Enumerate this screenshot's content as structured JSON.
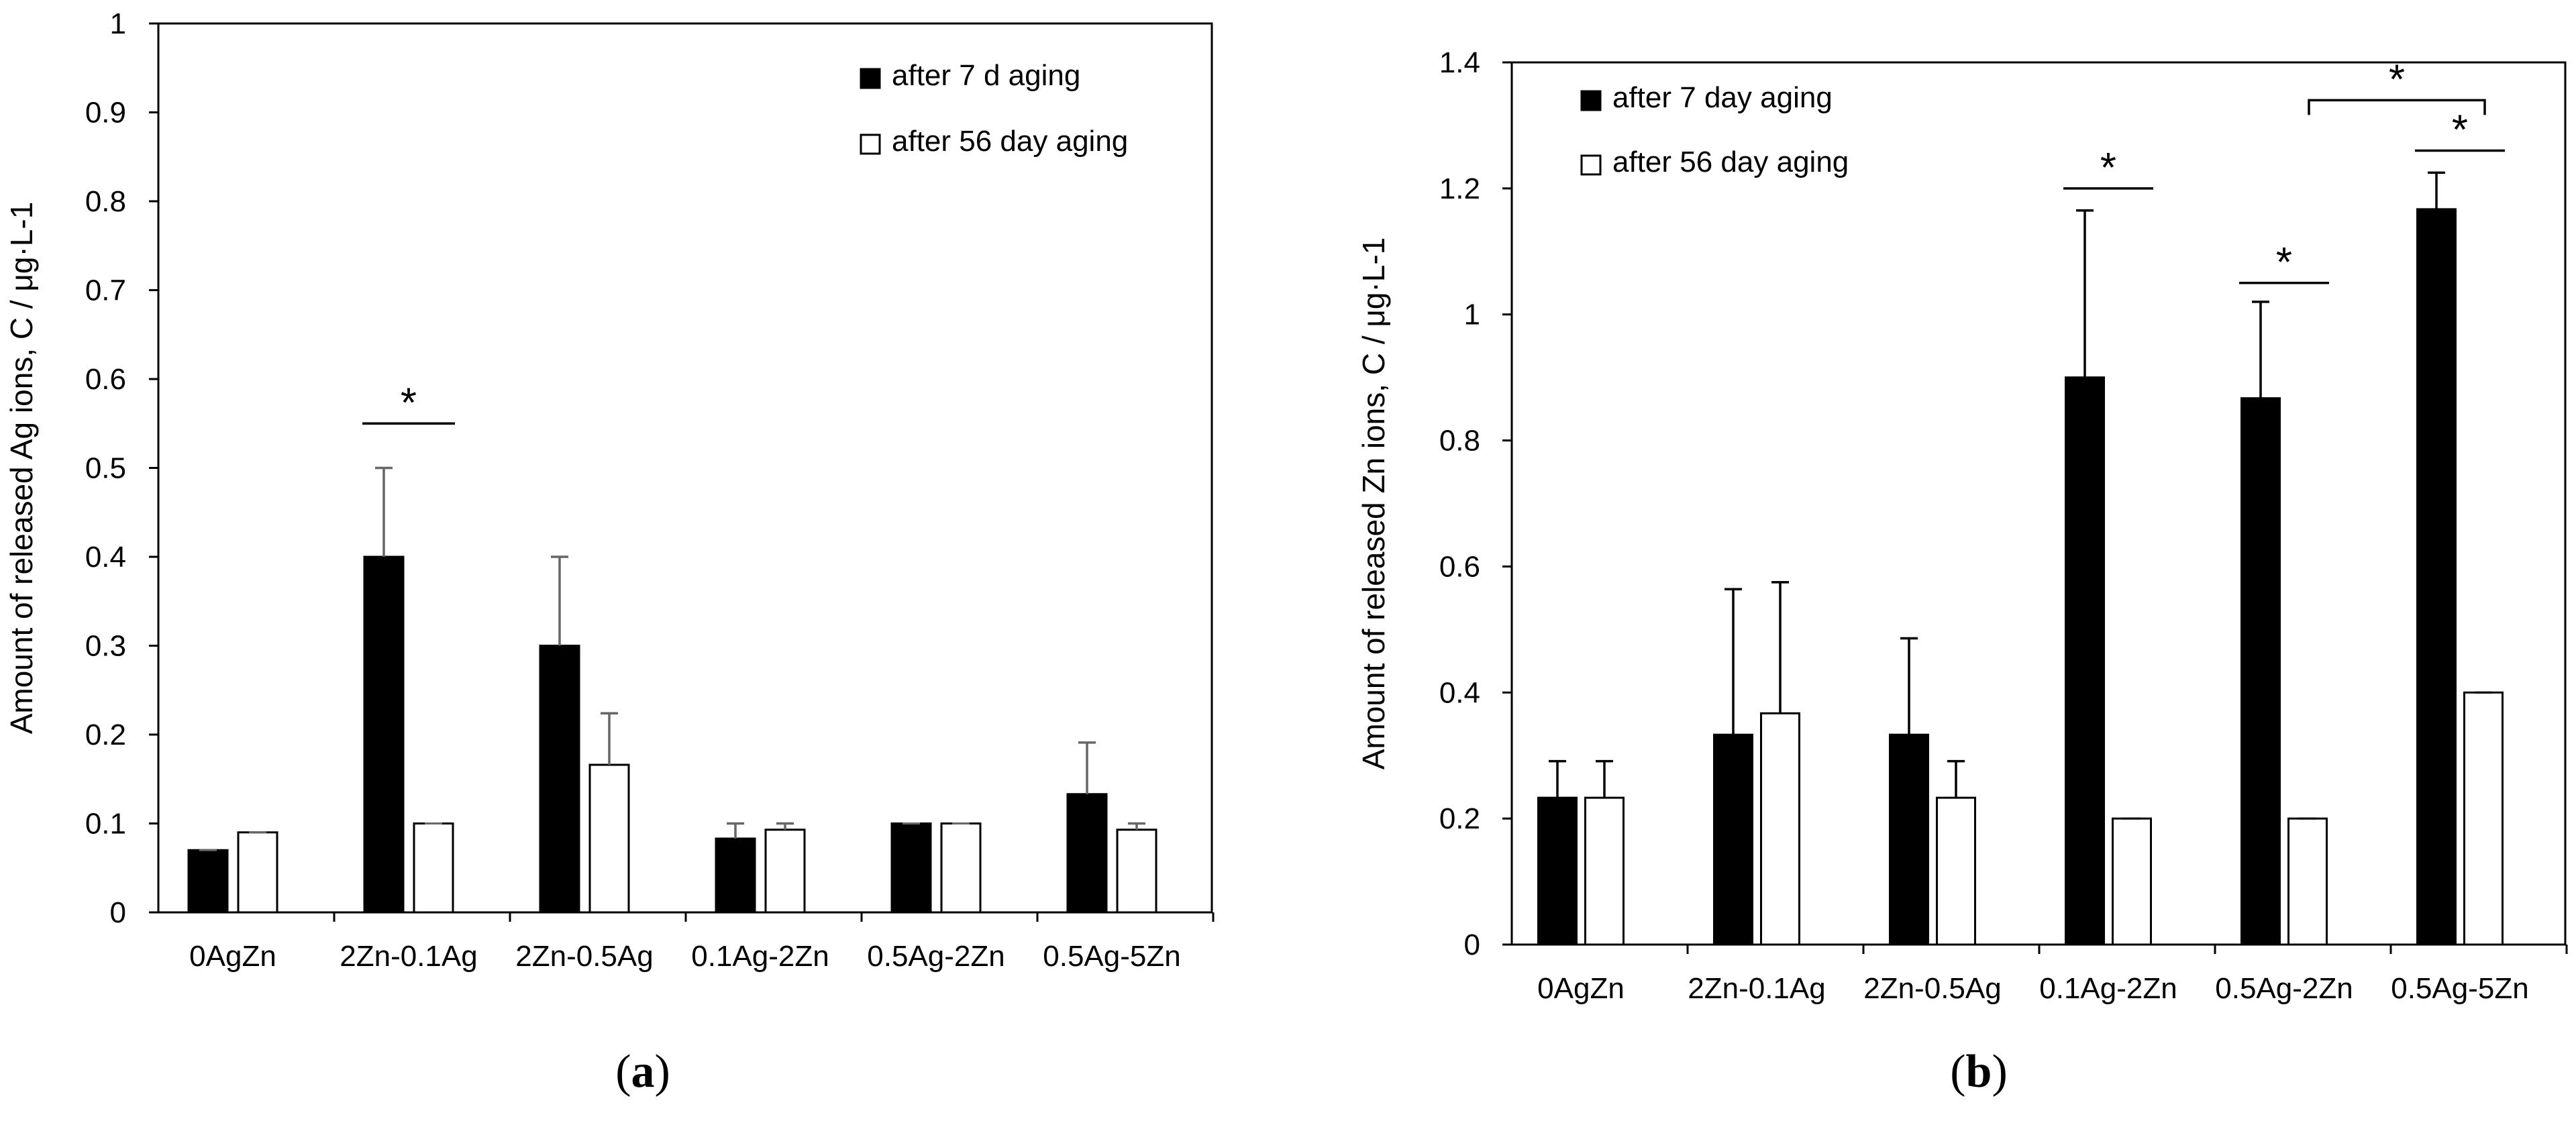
{
  "chart_data": [
    {
      "type": "bar",
      "panel_label": "a",
      "ylabel": "Amount of released Ag ions, C / μg·L-1",
      "xlabel": "",
      "ylim": [
        0,
        1
      ],
      "yticks": [
        0,
        0.1,
        0.2,
        0.3,
        0.4,
        0.5,
        0.6,
        0.7,
        0.8,
        0.9,
        1
      ],
      "tick_labels": [
        "0",
        "0.1",
        "0.2",
        "0.3",
        "0.4",
        "0.5",
        "0.6",
        "0.7",
        "0.8",
        "0.9",
        "1"
      ],
      "categories": [
        "0AgZn",
        "2Zn-0.1Ag",
        "2Zn-0.5Ag",
        "0.1Ag-2Zn",
        "0.5Ag-2Zn",
        "0.5Ag-5Zn"
      ],
      "series": [
        {
          "name": "after 7 d aging",
          "fill": "#000000",
          "values": [
            0.07,
            0.4,
            0.3,
            0.083,
            0.1,
            0.133
          ],
          "errors": [
            0.0,
            0.1,
            0.1,
            0.017,
            0.0,
            0.058
          ]
        },
        {
          "name": "after 56 day aging",
          "fill": "#ffffff",
          "values": [
            0.09,
            0.1,
            0.166,
            0.093,
            0.1,
            0.093
          ],
          "errors": [
            0.0,
            0.0,
            0.058,
            0.007,
            0.0,
            0.007
          ]
        }
      ],
      "error_color": "#666666",
      "legend_position": "top-right",
      "grid": false,
      "significance": [
        {
          "label": "*",
          "from": [
            1,
            0
          ],
          "to": [
            1,
            1
          ],
          "y": 0.55
        }
      ]
    },
    {
      "type": "bar",
      "panel_label": "b",
      "ylabel": "Amount of released Zn ions, C / μg·L-1",
      "xlabel": "",
      "ylim": [
        0,
        1.4
      ],
      "yticks": [
        0,
        0.2,
        0.4,
        0.6,
        0.8,
        1,
        1.2,
        1.4
      ],
      "tick_labels": [
        "0",
        "0.2",
        "0.4",
        "0.6",
        "0.8",
        "1",
        "1.2",
        "1.4"
      ],
      "categories": [
        "0AgZn",
        "2Zn-0.1Ag",
        "2Zn-0.5Ag",
        "0.1Ag-2Zn",
        "0.5Ag-2Zn",
        "0.5Ag-5Zn"
      ],
      "series": [
        {
          "name": "after 7 day aging",
          "fill": "#000000",
          "values": [
            0.233,
            0.333,
            0.333,
            0.9,
            0.867,
            1.167
          ],
          "errors": [
            0.058,
            0.231,
            0.153,
            0.265,
            0.153,
            0.058
          ]
        },
        {
          "name": "after 56 day aging",
          "fill": "#ffffff",
          "values": [
            0.233,
            0.367,
            0.233,
            0.2,
            0.2,
            0.4
          ],
          "errors": [
            0.058,
            0.208,
            0.058,
            0.0,
            0.0,
            0.0
          ]
        }
      ],
      "error_color": "#000000",
      "legend_position": "top-left",
      "grid": false,
      "significance": [
        {
          "label": "*",
          "from": [
            3,
            0
          ],
          "to": [
            3,
            1
          ],
          "y": 1.2
        },
        {
          "label": "*",
          "from": [
            4,
            0
          ],
          "to": [
            4,
            1
          ],
          "y": 1.05
        },
        {
          "label": "*",
          "from": [
            5,
            0
          ],
          "to": [
            5,
            1
          ],
          "y": 1.26
        },
        {
          "label": "*",
          "from": [
            4,
            1
          ],
          "to": [
            5,
            1
          ],
          "y": 1.34,
          "bracket": true
        }
      ]
    }
  ]
}
